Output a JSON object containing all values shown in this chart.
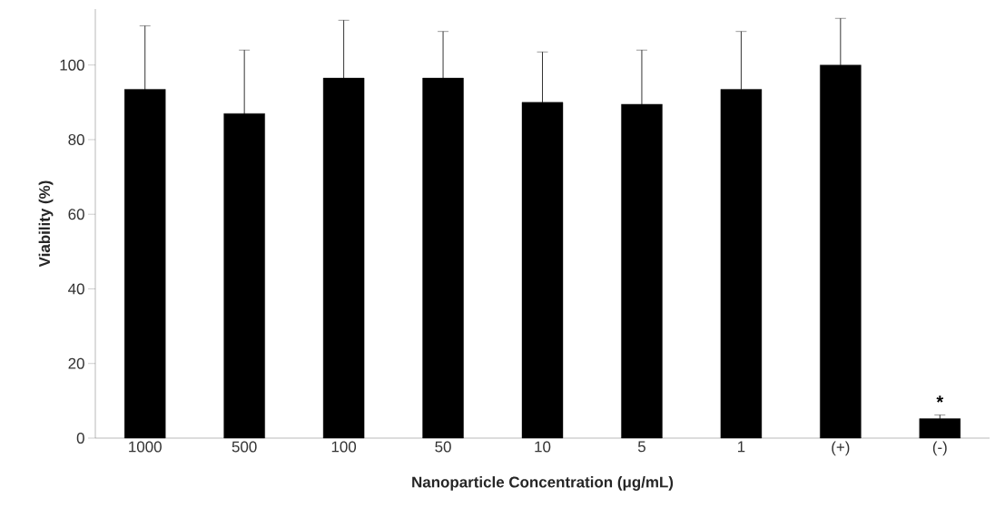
{
  "chart_data": {
    "type": "bar",
    "xlabel": "Nanoparticle Concentration (μg/mL)",
    "ylabel": "Viability (%)",
    "categories": [
      "1000",
      "500",
      "100",
      "50",
      "10",
      "5",
      "1",
      "(+)",
      "(-)"
    ],
    "values": [
      93.5,
      87,
      96.5,
      96.5,
      90,
      89.5,
      93.5,
      100,
      5.2
    ],
    "errors": [
      17,
      17,
      15.5,
      12.5,
      13.5,
      14.5,
      15.5,
      12.5,
      1
    ],
    "color": "#000000",
    "ylim": [
      0,
      115
    ],
    "yticks": [
      0,
      20,
      40,
      60,
      80,
      100
    ],
    "grid": false,
    "annotations": [
      "*"
    ]
  }
}
